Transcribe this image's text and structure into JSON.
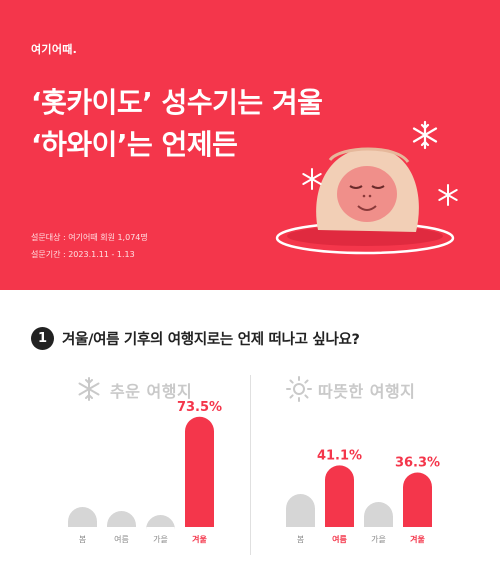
{
  "brand": {
    "logo": "여기어때."
  },
  "hero": {
    "headline_line1": "‘홋카이도’ 성수기는 겨울",
    "headline_line2": "‘하와이’는 언제든",
    "survey_target": "설문대상 : 여기어때 회원 1,074명",
    "survey_period": "설문기간 : 2023.1.11 - 1.13"
  },
  "colors": {
    "brand_red": "#f4364b",
    "bar_gray": "#d6d6d6",
    "text_dark": "#222222",
    "title_gray": "#c9c9c9"
  },
  "question": {
    "number": "1",
    "text": "겨울/여름 기후의 여행지로는 언제 떠나고 싶나요?"
  },
  "chart_data": [
    {
      "type": "bar",
      "title": "추운 여행지",
      "icon": "snowflake-icon",
      "categories": [
        "봄",
        "여름",
        "가을",
        "겨울"
      ],
      "values": [
        null,
        null,
        null,
        73.5
      ],
      "labels": [
        "",
        "",
        "",
        "73.5%"
      ],
      "highlight": [
        false,
        false,
        false,
        true
      ],
      "ylim": [
        0,
        80
      ]
    },
    {
      "type": "bar",
      "title": "따뜻한 여행지",
      "icon": "sun-icon",
      "categories": [
        "봄",
        "여름",
        "가을",
        "겨울"
      ],
      "values": [
        null,
        41.1,
        null,
        36.3
      ],
      "labels": [
        "",
        "41.1%",
        "",
        "36.3%"
      ],
      "highlight": [
        false,
        true,
        false,
        true
      ],
      "ylim": [
        0,
        80
      ]
    }
  ]
}
